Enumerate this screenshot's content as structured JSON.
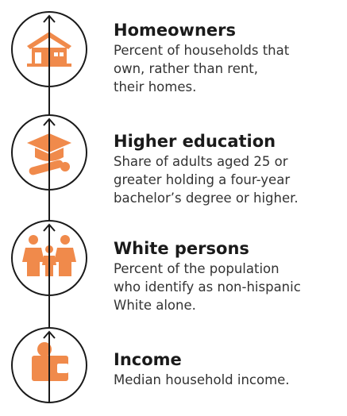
{
  "items": [
    {
      "title": "Homeowners",
      "description": [
        "Percent of households that",
        "own, rather than rent,",
        "their homes."
      ]
    },
    {
      "title": "Higher education",
      "description": [
        "Share of adults aged 25 or",
        "greater holding a four-year",
        "bachelor’s degree or higher."
      ]
    },
    {
      "title": "White persons",
      "description": [
        "Percent of the population",
        "who identify as non-hispanic",
        "White alone."
      ]
    },
    {
      "title": "Income",
      "description": [
        "Median household income."
      ]
    }
  ]
}
